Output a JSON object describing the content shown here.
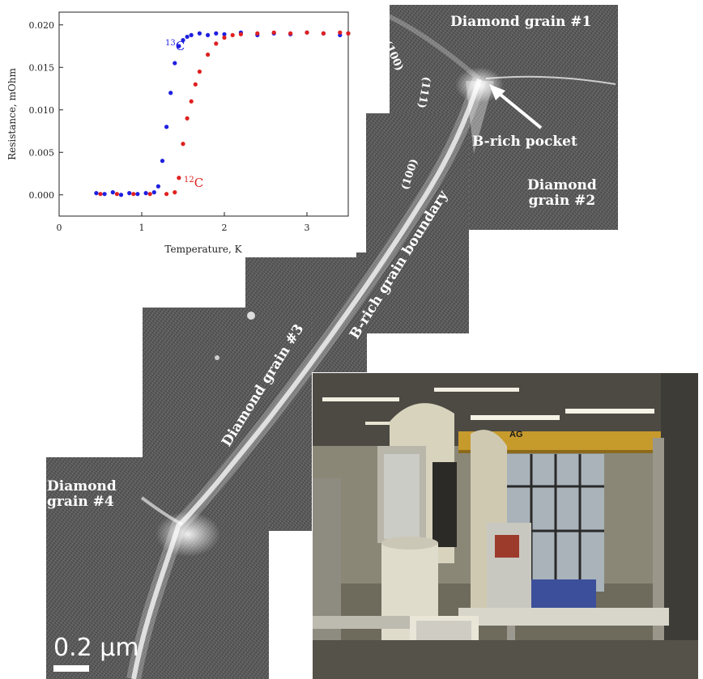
{
  "chart_data": {
    "type": "scatter",
    "xlabel": "Temperature, K",
    "ylabel": "Resistance, mOhm",
    "xlim": [
      0,
      3.5
    ],
    "ylim": [
      -0.0025,
      0.0215
    ],
    "xticks": [
      "0",
      "1",
      "2",
      "3"
    ],
    "yticks": [
      "0.000",
      "0.005",
      "0.010",
      "0.015",
      "0.020"
    ],
    "series": [
      {
        "name": "13C",
        "color": "#1f1fe0",
        "x": [
          0.45,
          0.55,
          0.65,
          0.75,
          0.85,
          0.95,
          1.05,
          1.15,
          1.2,
          1.25,
          1.3,
          1.35,
          1.4,
          1.45,
          1.5,
          1.55,
          1.6,
          1.7,
          1.8,
          1.9,
          2.0,
          2.2,
          2.4,
          2.6,
          2.8,
          3.0,
          3.2,
          3.4,
          3.5
        ],
        "y": [
          0.0002,
          0.0001,
          0.0003,
          0.0,
          0.0002,
          0.0001,
          0.0002,
          0.0003,
          0.001,
          0.004,
          0.008,
          0.012,
          0.0155,
          0.0175,
          0.0182,
          0.0186,
          0.0188,
          0.019,
          0.0188,
          0.019,
          0.0189,
          0.0191,
          0.0188,
          0.019,
          0.0189,
          0.0191,
          0.019,
          0.0188,
          0.019
        ]
      },
      {
        "name": "12C",
        "color": "#e02020",
        "x": [
          0.5,
          0.7,
          0.9,
          1.1,
          1.3,
          1.4,
          1.45,
          1.5,
          1.55,
          1.6,
          1.65,
          1.7,
          1.8,
          1.9,
          2.0,
          2.1,
          2.2,
          2.4,
          2.6,
          2.8,
          3.0,
          3.2,
          3.4,
          3.5
        ],
        "y": [
          0.0001,
          0.0001,
          0.0001,
          0.0001,
          0.0001,
          0.0003,
          0.002,
          0.006,
          0.009,
          0.011,
          0.013,
          0.0145,
          0.0165,
          0.0178,
          0.0185,
          0.0188,
          0.0189,
          0.019,
          0.0191,
          0.019,
          0.0191,
          0.019,
          0.0191,
          0.019
        ]
      }
    ],
    "annotations": {
      "c13_mass": "13",
      "c13_elem": "C",
      "c12_mass": "12",
      "c12_elem": "C"
    }
  },
  "micrograph": {
    "grain1": "Diamond grain #1",
    "grain2_line1": "Diamond",
    "grain2_line2": "grain #2",
    "grain3": "Diamond grain #3",
    "grain4_line1": "Diamond",
    "grain4_line2": "grain #4",
    "pocket": "B-rich pocket",
    "boundary": "B-rich grain boundary",
    "facet_100a": "(100)",
    "facet_111": "(111)",
    "facet_100b": "(100)",
    "scale": "0.2 μm"
  },
  "photo": {
    "machine_brand": "AG"
  },
  "colors": {
    "c13": "#1f1fe0",
    "c12": "#e02020"
  }
}
